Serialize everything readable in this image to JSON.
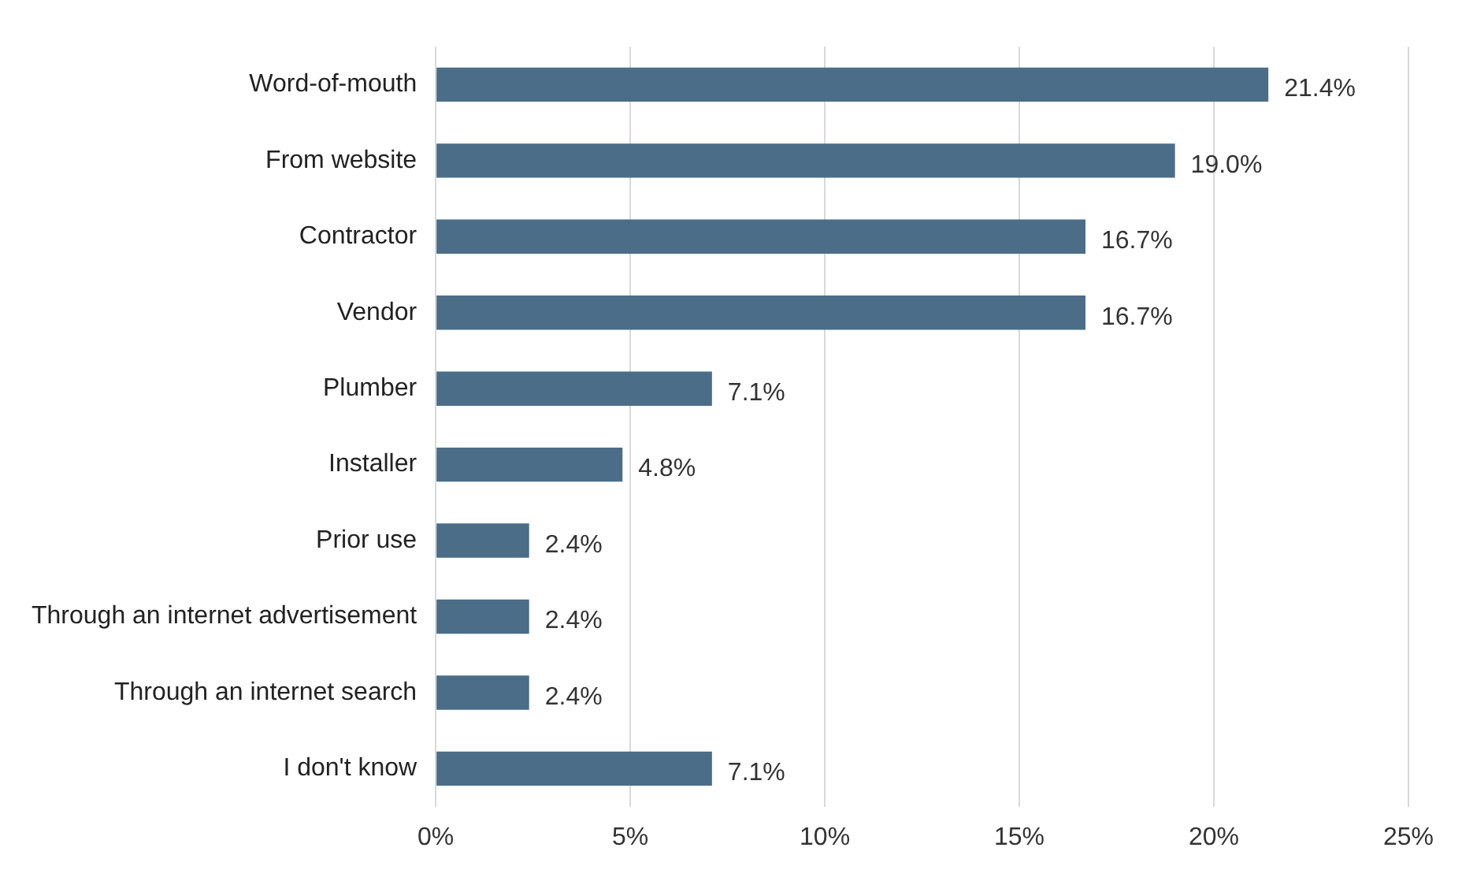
{
  "chart_data": {
    "type": "bar",
    "orientation": "horizontal",
    "categories": [
      "Word-of-mouth",
      "From website",
      "Contractor",
      "Vendor",
      "Plumber",
      "Installer",
      "Prior use",
      "Through an internet advertisement",
      "Through an internet search",
      "I don't know"
    ],
    "values": [
      21.4,
      19.0,
      16.7,
      16.7,
      7.1,
      4.8,
      2.4,
      2.4,
      2.4,
      7.1
    ],
    "value_labels": [
      "21.4%",
      "19.0%",
      "16.7%",
      "16.7%",
      "7.1%",
      "4.8%",
      "2.4%",
      "2.4%",
      "2.4%",
      "7.1%"
    ],
    "color": "#4b6d88",
    "xlim": [
      0,
      25
    ],
    "xticks": [
      {
        "value": 0,
        "label": "0%"
      },
      {
        "value": 5,
        "label": "5%"
      },
      {
        "value": 10,
        "label": "10%"
      },
      {
        "value": 15,
        "label": "15%"
      },
      {
        "value": 20,
        "label": "20%"
      },
      {
        "value": 25,
        "label": "25%"
      }
    ],
    "grid": "x",
    "legend": false
  }
}
